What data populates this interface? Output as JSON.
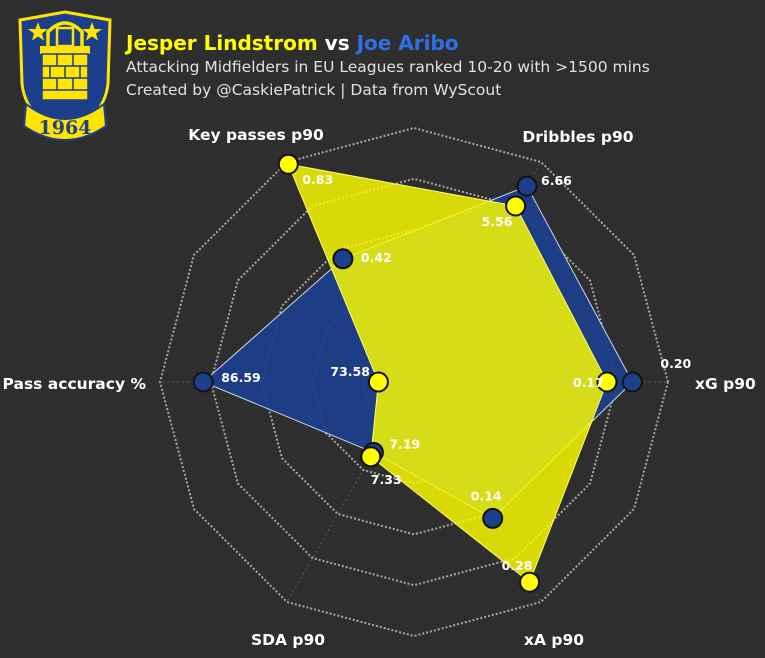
{
  "header": {
    "player1": "Jesper Lindstrom",
    "vs": "vs",
    "player2": "Joe Aribo",
    "subtitle": "Attacking Midfielders in EU Leagues ranked 10-20 with >1500 mins",
    "credit": "Created by @CaskiePatrick | Data from WyScout"
  },
  "crest": {
    "year": "1964"
  },
  "colors": {
    "background": "#2e2e2e",
    "player1": "#ffff00",
    "player2": "#1c3f8c",
    "grid": "#bdbdbd"
  },
  "chart_data": {
    "type": "radar",
    "axes": [
      "xG p90",
      "Dribbles p90",
      "Key passes p90",
      "Pass accuracy %",
      "SDA p90",
      "xA p90"
    ],
    "ylim": [
      0,
      1
    ],
    "grid": true,
    "series": [
      {
        "name": "Jesper Lindstrom",
        "values": [
          0.17,
          5.56,
          0.83,
          73.58,
          7.33,
          0.28
        ],
        "labels": [
          "0.17",
          "5.56",
          "0.83",
          "73.58",
          "7.33",
          "0.28"
        ],
        "radius": [
          0.76,
          0.8,
          0.99,
          0.14,
          0.34,
          0.91
        ]
      },
      {
        "name": "Joe Aribo",
        "values": [
          0.2,
          6.66,
          0.42,
          86.59,
          7.19,
          0.14
        ],
        "labels": [
          "0.20",
          "6.66",
          "0.42",
          "86.59",
          "7.19",
          "0.14"
        ],
        "radius": [
          0.86,
          0.89,
          0.56,
          0.83,
          0.32,
          0.62
        ]
      }
    ]
  }
}
